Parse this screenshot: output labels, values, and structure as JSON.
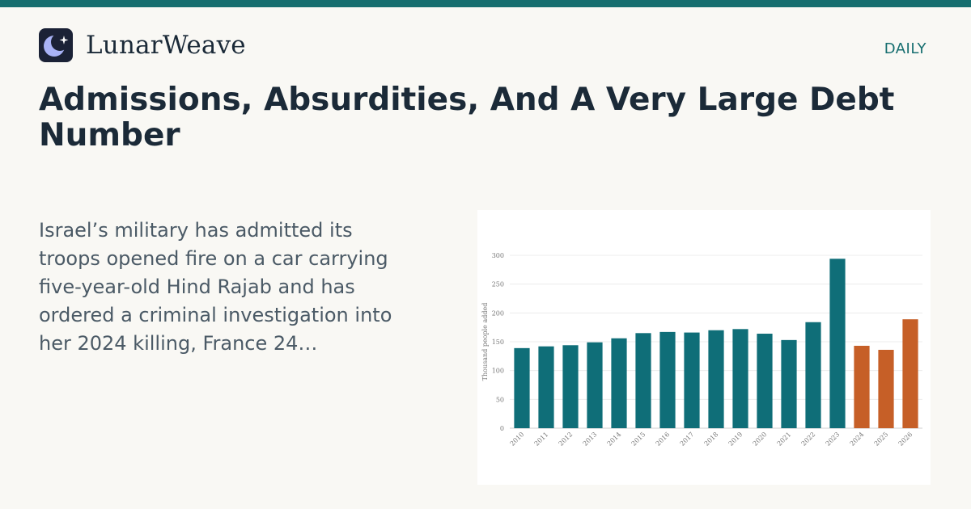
{
  "brand": {
    "name": "LunarWeave",
    "logo_icon": "moon-star-icon"
  },
  "section_tag": "DAILY",
  "article": {
    "headline": "Admissions, Absurdities, And A Very Large Debt Number",
    "summary": "Israel’s military has admitted its troops opened fire on a car carrying five-year-old Hind Rajab and has ordered a criminal investigation into her 2024 killing, France 24…"
  },
  "colors": {
    "accent": "#166e6f",
    "bar_primary": "#0f6e78",
    "bar_highlight": "#c65f27",
    "background": "#f9f8f4"
  },
  "chart_data": {
    "type": "bar",
    "categories": [
      "2010",
      "2011",
      "2012",
      "2013",
      "2014",
      "2015",
      "2016",
      "2017",
      "2018",
      "2019",
      "2020",
      "2021",
      "2022",
      "2023",
      "2024",
      "2025",
      "2026"
    ],
    "values": [
      139,
      142,
      144,
      149,
      156,
      165,
      167,
      166,
      170,
      172,
      164,
      153,
      184,
      294,
      143,
      136,
      189
    ],
    "highlight": [
      false,
      false,
      false,
      false,
      false,
      false,
      false,
      false,
      false,
      false,
      false,
      false,
      false,
      false,
      true,
      true,
      true
    ],
    "ylabel": "Thousand people added",
    "xlabel": "",
    "title": "",
    "ylim": [
      0,
      300
    ],
    "yticks": [
      0,
      50,
      100,
      150,
      200,
      250,
      300
    ],
    "grid": true
  }
}
